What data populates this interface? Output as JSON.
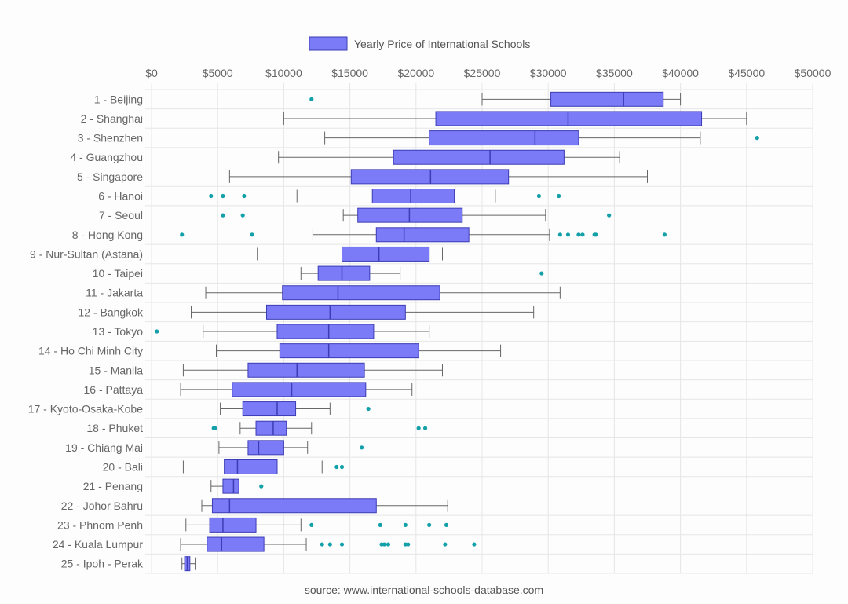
{
  "chart_data": {
    "type": "boxplot",
    "orientation": "horizontal",
    "legend": {
      "label": "Yearly Price of International Schools",
      "position": "top"
    },
    "source": "source: www.international-schools-database.com",
    "x_axis": {
      "position": "top",
      "min": 0,
      "max": 50000,
      "step": 5000,
      "tick_labels": [
        "$0",
        "$5000",
        "$10000",
        "$15000",
        "$20000",
        "$25000",
        "$30000",
        "$35000",
        "$40000",
        "$45000",
        "$50000"
      ],
      "grid": true
    },
    "colors": {
      "box_fill": "#7b7bf8",
      "box_stroke": "#3c3cb4",
      "whisker": "#666666",
      "outlier": "#14a0a8",
      "grid": "#e6e6e6"
    },
    "series": [
      {
        "name": "1 - Beijing",
        "min": 25000,
        "q1": 30200,
        "median": 35700,
        "q3": 38700,
        "max": 40000,
        "outliers": [
          12100
        ]
      },
      {
        "name": "2 - Shanghai",
        "min": 10000,
        "q1": 21500,
        "median": 31500,
        "q3": 41600,
        "max": 45000,
        "outliers": []
      },
      {
        "name": "3 - Shenzhen",
        "min": 13100,
        "q1": 21000,
        "median": 29000,
        "q3": 32300,
        "max": 41500,
        "outliers": [
          45800
        ]
      },
      {
        "name": "4 - Guangzhou",
        "min": 9600,
        "q1": 18300,
        "median": 25600,
        "q3": 31200,
        "max": 35400,
        "outliers": []
      },
      {
        "name": "5 - Singapore",
        "min": 5900,
        "q1": 15100,
        "median": 21100,
        "q3": 27000,
        "max": 37500,
        "outliers": []
      },
      {
        "name": "6 - Hanoi",
        "min": 11000,
        "q1": 16700,
        "median": 19600,
        "q3": 22900,
        "max": 26000,
        "outliers": [
          4500,
          5400,
          7000,
          29300,
          30800
        ]
      },
      {
        "name": "7 - Seoul",
        "min": 14500,
        "q1": 15600,
        "median": 19500,
        "q3": 23500,
        "max": 29800,
        "outliers": [
          5400,
          6900,
          34600
        ]
      },
      {
        "name": "8 - Hong Kong",
        "min": 12200,
        "q1": 17000,
        "median": 19100,
        "q3": 24000,
        "max": 30100,
        "outliers": [
          2300,
          7600,
          30900,
          31500,
          32300,
          32600,
          33500,
          33600,
          38800
        ]
      },
      {
        "name": "9 - Nur-Sultan (Astana)",
        "min": 8000,
        "q1": 14400,
        "median": 17200,
        "q3": 21000,
        "max": 22000,
        "outliers": []
      },
      {
        "name": "10 - Taipei",
        "min": 11300,
        "q1": 12600,
        "median": 14400,
        "q3": 16500,
        "max": 18800,
        "outliers": [
          29500
        ]
      },
      {
        "name": "11 - Jakarta",
        "min": 4100,
        "q1": 9900,
        "median": 14100,
        "q3": 21800,
        "max": 30900,
        "outliers": []
      },
      {
        "name": "12 - Bangkok",
        "min": 3000,
        "q1": 8700,
        "median": 13500,
        "q3": 19200,
        "max": 28900,
        "outliers": []
      },
      {
        "name": "13 - Tokyo",
        "min": 3900,
        "q1": 9500,
        "median": 13400,
        "q3": 16800,
        "max": 21000,
        "outliers": [
          400
        ]
      },
      {
        "name": "14 - Ho Chi Minh City",
        "min": 4900,
        "q1": 9700,
        "median": 13400,
        "q3": 20200,
        "max": 26400,
        "outliers": []
      },
      {
        "name": "15 - Manila",
        "min": 2400,
        "q1": 7300,
        "median": 11000,
        "q3": 16100,
        "max": 22000,
        "outliers": []
      },
      {
        "name": "16 - Pattaya",
        "min": 2200,
        "q1": 6100,
        "median": 10600,
        "q3": 16200,
        "max": 19700,
        "outliers": []
      },
      {
        "name": "17 - Kyoto-Osaka-Kobe",
        "min": 5200,
        "q1": 6900,
        "median": 9500,
        "q3": 10900,
        "max": 13500,
        "outliers": [
          16400
        ]
      },
      {
        "name": "18 - Phuket",
        "min": 6700,
        "q1": 7900,
        "median": 9200,
        "q3": 10200,
        "max": 12100,
        "outliers": [
          4700,
          4800,
          20200,
          20700
        ]
      },
      {
        "name": "19 - Chiang Mai",
        "min": 5100,
        "q1": 7300,
        "median": 8100,
        "q3": 10000,
        "max": 11800,
        "outliers": [
          15900
        ]
      },
      {
        "name": "20 - Bali",
        "min": 2400,
        "q1": 5500,
        "median": 6500,
        "q3": 9500,
        "max": 12900,
        "outliers": [
          14000,
          14400
        ]
      },
      {
        "name": "21 - Penang",
        "min": 4500,
        "q1": 5400,
        "median": 6200,
        "q3": 6600,
        "max": 6600,
        "outliers": [
          8300
        ]
      },
      {
        "name": "22 - Johor Bahru",
        "min": 3800,
        "q1": 4600,
        "median": 5900,
        "q3": 17000,
        "max": 22400,
        "outliers": []
      },
      {
        "name": "23 - Phnom Penh",
        "min": 2600,
        "q1": 4400,
        "median": 5400,
        "q3": 7900,
        "max": 11300,
        "outliers": [
          12100,
          17300,
          19200,
          21000,
          22300
        ]
      },
      {
        "name": "24 - Kuala Lumpur",
        "min": 2200,
        "q1": 4200,
        "median": 5300,
        "q3": 8500,
        "max": 11700,
        "outliers": [
          12900,
          13500,
          14400,
          17400,
          17600,
          17900,
          19200,
          19400,
          22200,
          24400
        ]
      },
      {
        "name": "25 - Ipoh - Perak",
        "min": 2300,
        "q1": 2500,
        "median": 2700,
        "q3": 2900,
        "max": 3300,
        "outliers": []
      }
    ]
  }
}
